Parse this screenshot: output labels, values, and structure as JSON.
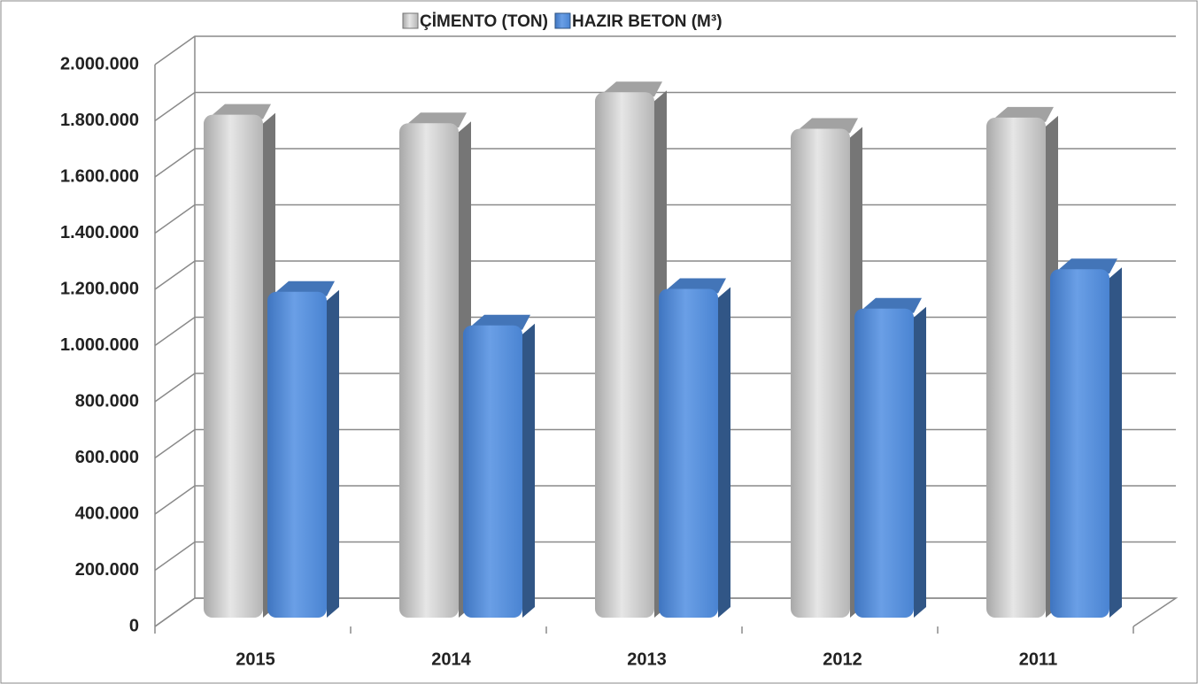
{
  "chart_data": {
    "type": "bar3d",
    "categories": [
      "2015",
      "2014",
      "2013",
      "2012",
      "2011"
    ],
    "series": [
      {
        "name": "ÇİMENTO (TON)",
        "color": "#bfbfbf",
        "values": [
          1790000,
          1760000,
          1870000,
          1740000,
          1780000
        ]
      },
      {
        "name": "HAZIR BETON (M³)",
        "color": "#4f8ad8",
        "values": [
          1160000,
          1040000,
          1170000,
          1100000,
          1240000
        ]
      }
    ],
    "ylim": [
      0,
      2000000
    ],
    "yticks": [
      0,
      {
        "value": 200000,
        "label": "200.000"
      },
      {
        "value": 400000,
        "label": "400.000"
      },
      {
        "value": 600000,
        "label": "600.000"
      },
      {
        "value": 800000,
        "label": "800.000"
      },
      {
        "value": 1000000,
        "label": "1.000.000"
      },
      {
        "value": 1200000,
        "label": "1.200.000"
      },
      {
        "value": 1400000,
        "label": "1.400.000"
      },
      {
        "value": 1600000,
        "label": "1.600.000"
      },
      {
        "value": 1800000,
        "label": "1.800.000"
      },
      {
        "value": 2000000,
        "label": "2.000.000"
      }
    ],
    "grid": true,
    "legend": "top"
  }
}
